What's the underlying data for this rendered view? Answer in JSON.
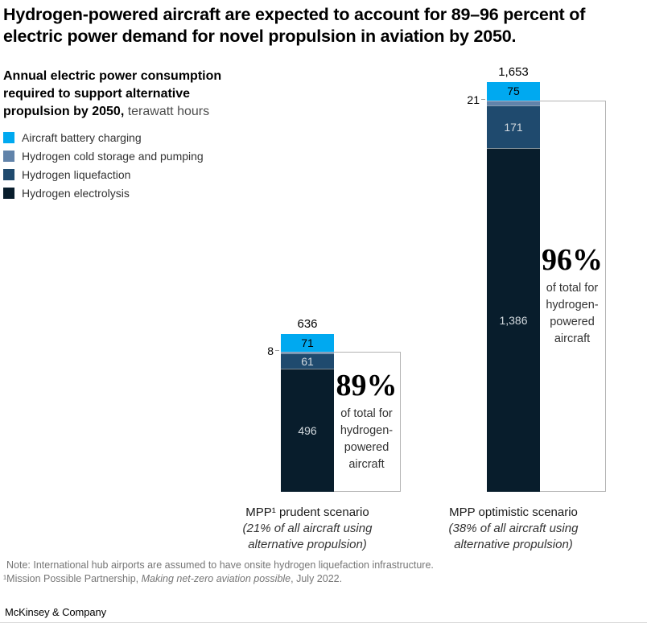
{
  "title": "Hydrogen-powered aircraft are expected to account for 89–96 percent of electric power demand for novel propulsion in aviation by 2050.",
  "subtitle": {
    "bold": "Annual electric power consumption required to support alternative propulsion by 2050,",
    "unit": " terawatt hours"
  },
  "chart_data": {
    "type": "stacked-bar",
    "title": "Annual electric power consumption required to support alternative propulsion by 2050",
    "unit": "terawatt hours",
    "legend_position": "top-left",
    "series": [
      {
        "name": "Aircraft battery charging",
        "color": "#00a9f0"
      },
      {
        "name": "Hydrogen cold storage and pumping",
        "color": "#6183aa"
      },
      {
        "name": "Hydrogen liquefaction",
        "color": "#1f4a6e"
      },
      {
        "name": "Hydrogen electrolysis",
        "color": "#081d2c"
      }
    ],
    "bars": [
      {
        "id": "prudent",
        "scenario": "MPP¹ prudent scenario",
        "scenario_detail": "(21% of all aircraft using alternative propulsion)",
        "total": 636,
        "total_label": "636",
        "outside_label": "8",
        "percent": "89%",
        "percent_note": "of total for hydrogen-powered aircraft",
        "segments": [
          {
            "series": 0,
            "value": 71,
            "label": "71",
            "label_style": "dark",
            "show_label": true
          },
          {
            "series": 1,
            "value": 8,
            "label": "8",
            "label_style": "dark",
            "show_label": false
          },
          {
            "series": 2,
            "value": 61,
            "label": "61",
            "label_style": "light",
            "show_label": true
          },
          {
            "series": 3,
            "value": 496,
            "label": "496",
            "label_style": "light",
            "show_label": true
          }
        ]
      },
      {
        "id": "optimistic",
        "scenario": "MPP optimistic scenario",
        "scenario_detail": "(38% of all aircraft using alternative propulsion)",
        "total": 1653,
        "total_label": "1,653",
        "outside_label": "21",
        "percent": "96%",
        "percent_note": "of total for hydrogen-powered aircraft",
        "segments": [
          {
            "series": 0,
            "value": 75,
            "label": "75",
            "label_style": "dark",
            "show_label": true
          },
          {
            "series": 1,
            "value": 21,
            "label": "21",
            "label_style": "dark",
            "show_label": false
          },
          {
            "series": 2,
            "value": 171,
            "label": "171",
            "label_style": "light",
            "show_label": true
          },
          {
            "series": 3,
            "value": 1386,
            "label": "1,386",
            "label_style": "light",
            "show_label": true
          }
        ]
      }
    ]
  },
  "note": "Note: International hub airports are assumed to have onsite hydrogen liquefaction infrastructure.",
  "footnote": {
    "prefix": "¹Mission Possible Partnership, ",
    "italic": "Making net-zero aviation possible",
    "suffix": ", July 2022."
  },
  "brand": "McKinsey & Company"
}
